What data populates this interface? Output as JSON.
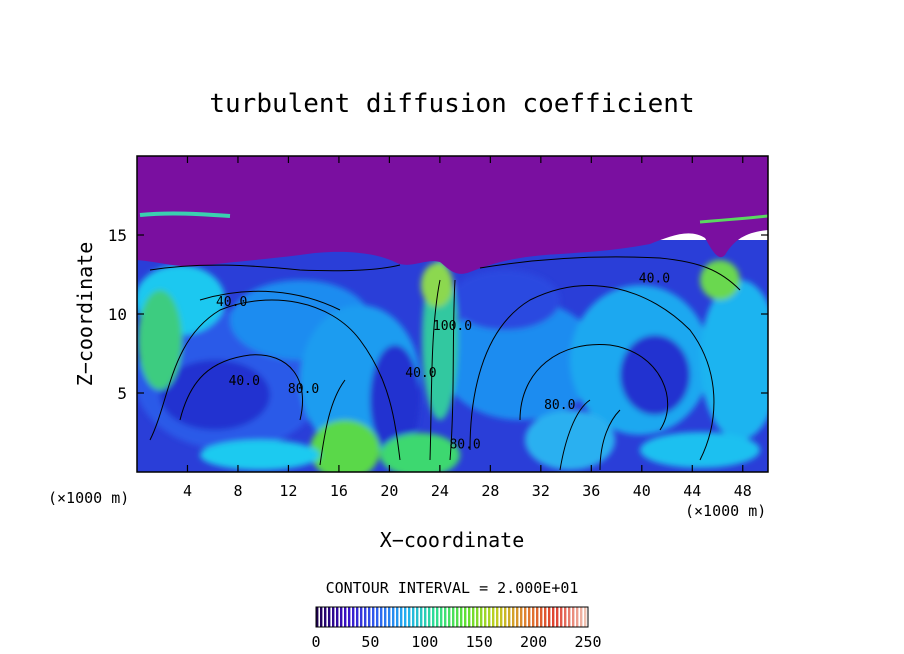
{
  "chart_data": {
    "type": "heatmap",
    "title": "turbulent diffusion coefficient",
    "xlabel": "X−coordinate",
    "ylabel": "Z−coordinate",
    "x_unit_label_left": "(×1000 m)",
    "x_unit_label_right": "(×1000 m)",
    "xlim": [
      0,
      50
    ],
    "ylim": [
      0,
      20
    ],
    "x_ticks": [
      4,
      8,
      12,
      16,
      20,
      24,
      28,
      32,
      36,
      40,
      44,
      48
    ],
    "y_ticks": [
      5,
      10,
      15
    ],
    "contour_interval_text": "CONTOUR INTERVAL = 2.000E+01",
    "contour_labels": [
      {
        "text": "40.0",
        "x": 7.5,
        "y": 10.5
      },
      {
        "text": "40.0",
        "x": 8.5,
        "y": 5.5
      },
      {
        "text": "80.0",
        "x": 13.2,
        "y": 5.0
      },
      {
        "text": "40.0",
        "x": 22.5,
        "y": 6.0
      },
      {
        "text": "100.0",
        "x": 25.0,
        "y": 9.0
      },
      {
        "text": "80.0",
        "x": 26.0,
        "y": 1.5
      },
      {
        "text": "80.0",
        "x": 33.5,
        "y": 4.0
      },
      {
        "text": "40.0",
        "x": 41.0,
        "y": 12.0
      }
    ],
    "colorbar": {
      "min": 0,
      "max": 250,
      "ticks": [
        0,
        50,
        100,
        150,
        200,
        250
      ],
      "colors": [
        "#1e0050",
        "#3a10c8",
        "#2f60f0",
        "#20b0f0",
        "#30e090",
        "#60e030",
        "#c0d020",
        "#e08030",
        "#e04030",
        "#f0c0b0"
      ]
    },
    "colors": {
      "top_layer": "#7a0fa0",
      "deep_blue": "#2632d8",
      "mid_blue": "#1e78f0",
      "cyan": "#1ec8f0",
      "green": "#3cdc5a",
      "yellow_green": "#b4dc3c"
    }
  }
}
